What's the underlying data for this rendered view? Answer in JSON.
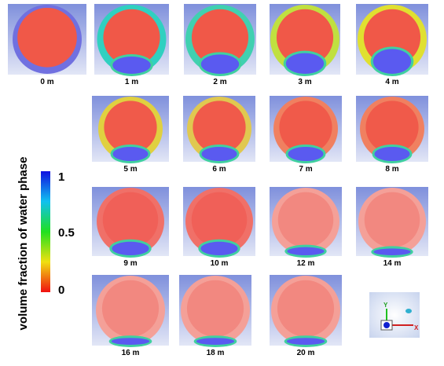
{
  "figure": {
    "panels": [
      {
        "label": "0 m"
      },
      {
        "label": "1 m"
      },
      {
        "label": "2 m"
      },
      {
        "label": "3 m"
      },
      {
        "label": "4 m"
      },
      {
        "label": "5 m"
      },
      {
        "label": "6 m"
      },
      {
        "label": "7 m"
      },
      {
        "label": "8 m"
      },
      {
        "label": "9 m"
      },
      {
        "label": "10 m"
      },
      {
        "label": "12 m"
      },
      {
        "label": "14 m"
      },
      {
        "label": "16 m"
      },
      {
        "label": "18 m"
      },
      {
        "label": "20 m"
      }
    ],
    "colorbar": {
      "title": "volume fraction of water phase",
      "ticks": [
        "1",
        "0.5",
        "0"
      ]
    },
    "axes": {
      "x": "X",
      "y": "Y"
    }
  }
}
